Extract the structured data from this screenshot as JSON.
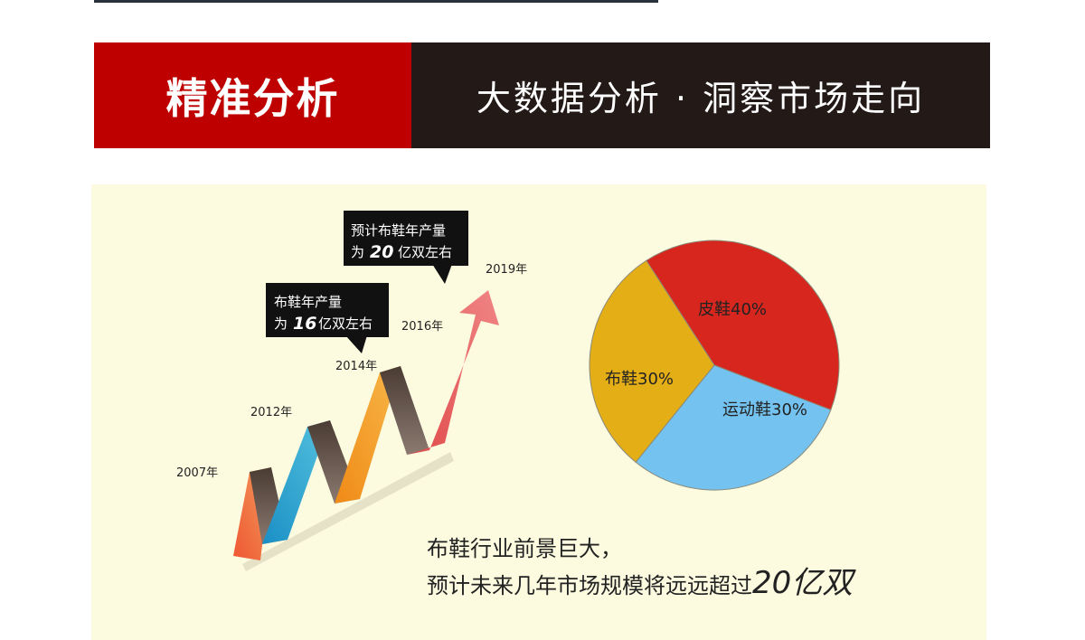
{
  "header": {
    "left_title": "精准分析",
    "right_title": "大数据分析 · 洞察市场走向"
  },
  "growth_chart": {
    "years": [
      "2007年",
      "2012年",
      "2014年",
      "2016年",
      "2019年"
    ],
    "callout_2016": {
      "line1": "布鞋年产量",
      "prefix": "为",
      "number": "16",
      "suffix": "亿双左右"
    },
    "callout_2019": {
      "line1": "预计布鞋年产量",
      "prefix": "为",
      "number": "20",
      "suffix": "亿双左右"
    }
  },
  "chart_data": {
    "type": "pie",
    "slices": [
      {
        "label": "皮鞋40%",
        "value": 40,
        "color": "#d7261e"
      },
      {
        "label": "运动鞋30%",
        "value": 30,
        "color": "#74c2ef"
      },
      {
        "label": "布鞋30%",
        "value": 30,
        "color": "#e4ae17"
      }
    ]
  },
  "caption": {
    "line1": "布鞋行业前景巨大，",
    "line2_prefix": "预计未来几年市场规模将远远超过",
    "line2_big": "20亿双"
  },
  "colors": {
    "banner_red": "#be0000",
    "banner_dark": "#231a18",
    "panel_bg": "#fcfbe0"
  }
}
